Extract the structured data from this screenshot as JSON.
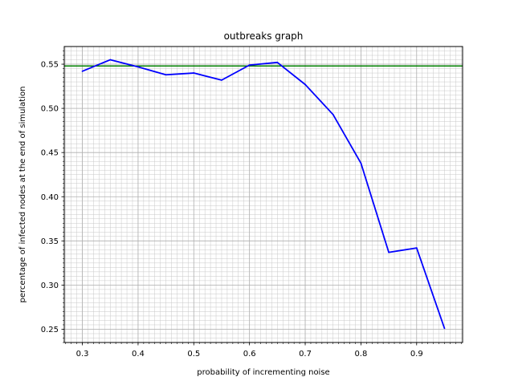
{
  "chart_data": {
    "type": "line",
    "title": "outbreaks graph",
    "xlabel": "probability of incrementing noise",
    "ylabel": "percentage of infected nodes at the end of simulation",
    "xlim": [
      0.2675,
      0.9825
    ],
    "ylim": [
      0.235,
      0.57
    ],
    "x_ticks": [
      "0.3",
      "0.4",
      "0.5",
      "0.6",
      "0.7",
      "0.8",
      "0.9"
    ],
    "y_ticks": [
      "0.25",
      "0.30",
      "0.35",
      "0.40",
      "0.45",
      "0.50",
      "0.55"
    ],
    "grid": true,
    "minor_grid": true,
    "series": [
      {
        "color": "#0000ff",
        "x": [
          0.3,
          0.35,
          0.4,
          0.45,
          0.5,
          0.55,
          0.6,
          0.65,
          0.7,
          0.75,
          0.8,
          0.85,
          0.9,
          0.95
        ],
        "y": [
          0.542,
          0.555,
          0.547,
          0.538,
          0.54,
          0.532,
          0.549,
          0.552,
          0.527,
          0.493,
          0.438,
          0.337,
          0.342,
          0.251
        ]
      }
    ],
    "hlines": [
      {
        "y": 0.548,
        "color": "#008000"
      }
    ]
  }
}
